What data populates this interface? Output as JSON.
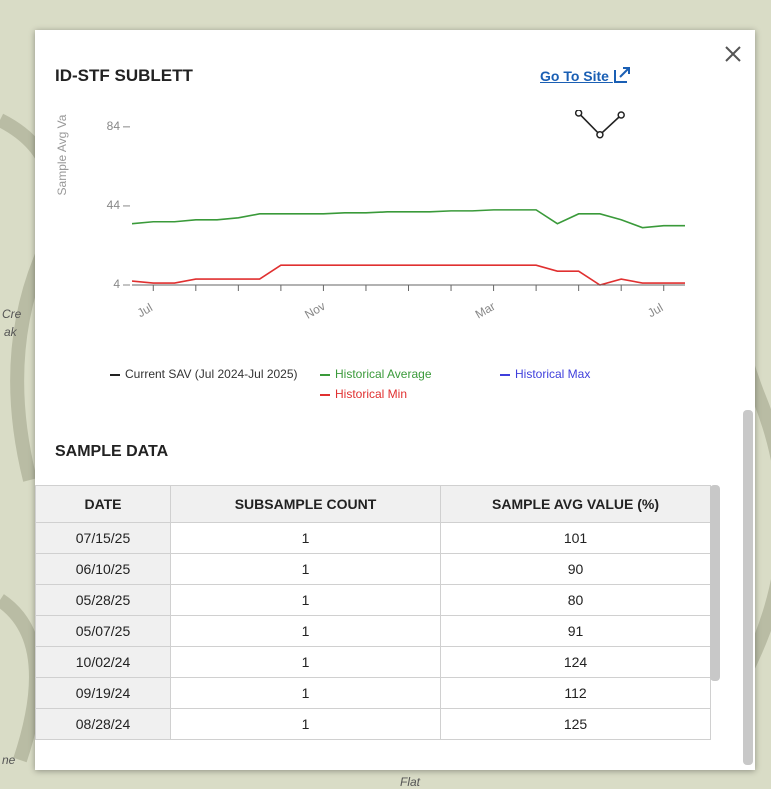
{
  "map_labels": [
    "Cre",
    "ak",
    "ne",
    "Flat"
  ],
  "header": {
    "title": "ID-STF SUBLETT",
    "link": "Go To Site"
  },
  "chart_data": {
    "type": "line",
    "y_label": "Sample Avg Va",
    "categories": [
      null,
      "Jul",
      null,
      null,
      null,
      null,
      null,
      null,
      null,
      "Nov",
      null,
      null,
      null,
      null,
      null,
      null,
      null,
      "Mar",
      null,
      null,
      null,
      null,
      null,
      null,
      null,
      "Jul",
      null
    ],
    "series": [
      {
        "name": "Current SAV (Jul 2024-Jul 2025)",
        "color": "#222222",
        "values": [
          null,
          null,
          null,
          null,
          null,
          null,
          null,
          null,
          null,
          null,
          null,
          null,
          null,
          null,
          null,
          null,
          null,
          null,
          null,
          null,
          null,
          91,
          80,
          90,
          null,
          null,
          null
        ]
      },
      {
        "name": "Historical Average",
        "color": "#3a9a3a",
        "values": [
          35,
          36,
          36,
          37,
          37,
          38,
          40,
          40,
          40,
          40,
          40.5,
          40.5,
          41,
          41,
          41,
          41.5,
          41.5,
          42,
          42,
          42,
          35,
          40,
          40,
          37,
          33,
          34,
          34
        ]
      },
      {
        "name": "Historical Max",
        "color": "#3f3fdc",
        "values": [
          null,
          null,
          null,
          null,
          null,
          null,
          null,
          null,
          null,
          null,
          null,
          null,
          null,
          null,
          null,
          null,
          null,
          null,
          null,
          null,
          null,
          null,
          null,
          null,
          null,
          null,
          null
        ]
      },
      {
        "name": "Historical Min",
        "color": "#e03030",
        "values": [
          6,
          5,
          5,
          7,
          7,
          7,
          7,
          14,
          14,
          14,
          14,
          14,
          14,
          14,
          14,
          14,
          14,
          14,
          14,
          14,
          11,
          11,
          4,
          7,
          5,
          5,
          5
        ]
      }
    ],
    "ylim": [
      4,
      90
    ],
    "yticks": [
      4,
      44,
      84
    ],
    "grid": false
  },
  "table": {
    "title": "SAMPLE DATA",
    "columns": [
      "DATE",
      "SUBSAMPLE COUNT",
      "SAMPLE AVG VALUE (%)"
    ],
    "rows": [
      [
        "07/15/25",
        "1",
        "101"
      ],
      [
        "06/10/25",
        "1",
        "90"
      ],
      [
        "05/28/25",
        "1",
        "80"
      ],
      [
        "05/07/25",
        "1",
        "91"
      ],
      [
        "10/02/24",
        "1",
        "124"
      ],
      [
        "09/19/24",
        "1",
        "112"
      ],
      [
        "08/28/24",
        "1",
        "125"
      ]
    ]
  }
}
